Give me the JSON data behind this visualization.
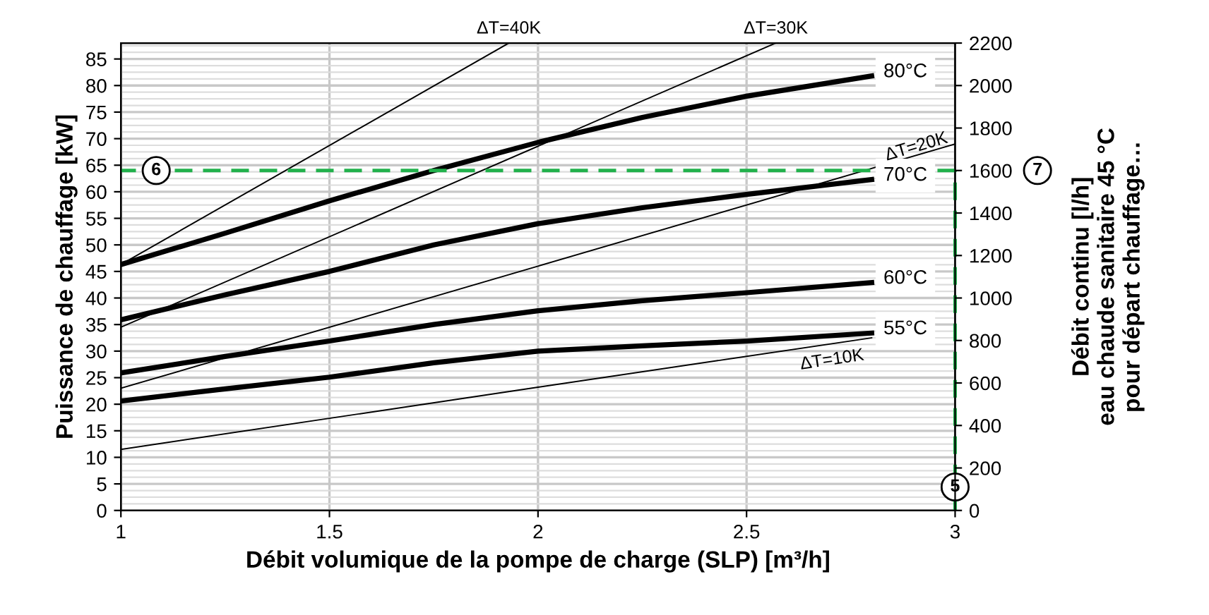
{
  "chart_data": {
    "type": "line",
    "xlabel": "Débit volumique de la pompe de charge (SLP) [m³/h]",
    "ylabel": "Puissance de chauffage [kW]",
    "y2label": "Débit continu [l/h]\neau chaude sanitaire 45 °C\npour départ chauffage…",
    "xlim": [
      1,
      3
    ],
    "xticks": [
      1,
      1.5,
      2,
      2.5,
      3
    ],
    "ylim": [
      0,
      88
    ],
    "yticks": [
      0,
      5,
      10,
      15,
      20,
      25,
      30,
      35,
      40,
      45,
      50,
      55,
      60,
      65,
      70,
      75,
      80,
      85
    ],
    "y2lim": [
      0,
      2200
    ],
    "y2ticks": [
      0,
      200,
      400,
      600,
      800,
      1000,
      1200,
      1400,
      1600,
      1800,
      2000,
      2200
    ],
    "grid": true,
    "legend": false,
    "marker": "none",
    "line_style": "solid",
    "series": [
      {
        "name": "80°C",
        "color": "#000000",
        "x": [
          1,
          1.25,
          1.5,
          1.75,
          2,
          2.25,
          2.5,
          2.8
        ],
        "values": [
          46.3,
          52.2,
          58.3,
          64,
          69.3,
          74,
          78,
          81.8
        ]
      },
      {
        "name": "70°C",
        "color": "#000000",
        "x": [
          1,
          1.25,
          1.5,
          1.75,
          2,
          2.25,
          2.5,
          2.8
        ],
        "values": [
          35.9,
          40.6,
          45,
          50,
          54,
          57,
          59.5,
          62.3
        ]
      },
      {
        "name": "60°C",
        "color": "#000000",
        "x": [
          1,
          1.25,
          1.5,
          1.75,
          2,
          2.25,
          2.5,
          2.8
        ],
        "values": [
          25.9,
          29,
          31.9,
          35,
          37.6,
          39.5,
          41,
          42.9
        ]
      },
      {
        "name": "55°C",
        "color": "#000000",
        "x": [
          1,
          1.25,
          1.5,
          1.75,
          2,
          2.25,
          2.5,
          2.8
        ],
        "values": [
          20.6,
          22.9,
          25.1,
          27.8,
          30,
          31,
          31.9,
          33.4
        ]
      },
      {
        "name": "ΔT=40K",
        "color": "#000000",
        "x": [
          1,
          1.93
        ],
        "values": [
          46.3,
          88
        ]
      },
      {
        "name": "ΔT=30K",
        "color": "#000000",
        "x": [
          1,
          2.57
        ],
        "values": [
          34.5,
          88
        ]
      },
      {
        "name": "ΔT=20K",
        "color": "#000000",
        "x": [
          1,
          2,
          3
        ],
        "values": [
          23,
          46,
          69
        ]
      },
      {
        "name": "ΔT=10K",
        "color": "#000000",
        "x": [
          1,
          2,
          2.8
        ],
        "values": [
          11.5,
          23.2,
          32.5
        ]
      }
    ],
    "ref_lines": [
      {
        "axis": "y2",
        "value": 1600,
        "color": "#22b14c",
        "line_style": "dashed"
      },
      {
        "axis": "x",
        "value": 3,
        "color": "#22b14c",
        "line_style": "dashed"
      }
    ],
    "annotations": [
      "6",
      "7",
      "5"
    ]
  }
}
